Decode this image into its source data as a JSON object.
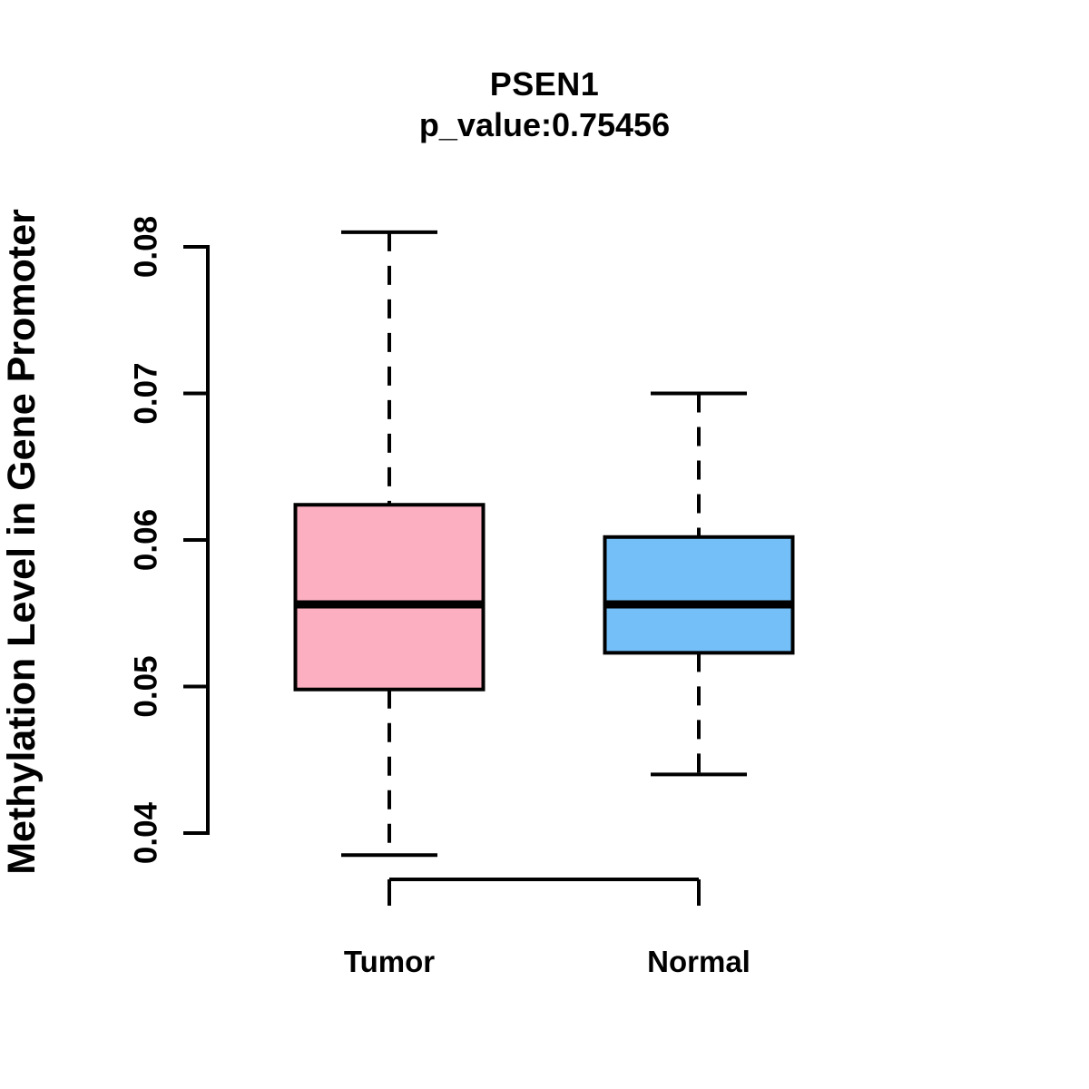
{
  "chart_data": {
    "type": "boxplot",
    "title": "PSEN1",
    "subtitle": "p_value:0.75456",
    "p_value": "0.75456",
    "ylabel": "Methylation Level in Gene Promoter",
    "xlabel": "",
    "ylim": [
      0.04,
      0.08
    ],
    "yticks": [
      "0.04",
      "0.05",
      "0.06",
      "0.07",
      "0.08"
    ],
    "categories": [
      "Tumor",
      "Normal"
    ],
    "grid": false,
    "legend": null,
    "series": [
      {
        "name": "Tumor",
        "color": "#FCAFC1",
        "whisker_low": 0.0385,
        "q1": 0.0498,
        "median": 0.0556,
        "q3": 0.0624,
        "whisker_high": 0.081
      },
      {
        "name": "Normal",
        "color": "#74BFF7",
        "whisker_low": 0.044,
        "q1": 0.0523,
        "median": 0.0556,
        "q3": 0.0602,
        "whisker_high": 0.07
      }
    ],
    "line_color": "#000000"
  }
}
